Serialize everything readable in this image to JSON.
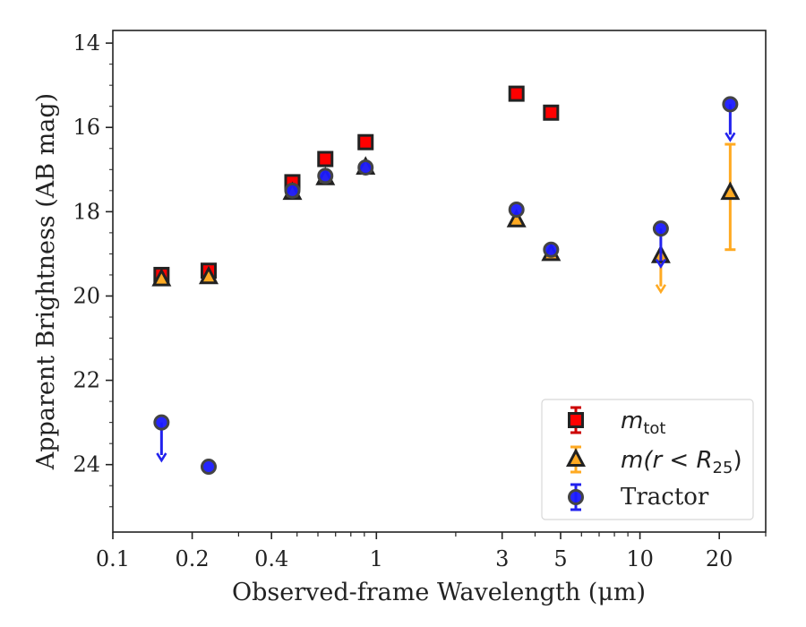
{
  "chart_data": {
    "type": "scatter",
    "xlabel": "Observed-frame Wavelength (μm)",
    "ylabel": "Apparent Brightness (AB mag)",
    "x_scale": "log",
    "y_inverted": true,
    "xlim": [
      0.1,
      30
    ],
    "ylim": [
      25.6,
      13.7
    ],
    "grid": false,
    "legend_position": "lower right",
    "x_ticks": [
      0.1,
      0.2,
      0.4,
      1,
      3,
      5,
      10,
      20
    ],
    "x_tick_labels": [
      "0.1",
      "0.2",
      "0.4",
      "1",
      "3",
      "5",
      "10",
      "20"
    ],
    "y_ticks": [
      14,
      16,
      18,
      20,
      22,
      24
    ],
    "y_tick_labels": [
      "14",
      "16",
      "18",
      "20",
      "22",
      "24"
    ],
    "legend": {
      "mtot_label": "m",
      "mtot_sub": "tot",
      "mr25_pre": "m(r < R",
      "mr25_sub": "25",
      "mr25_post": ")",
      "tractor_label": "Tractor"
    },
    "series": [
      {
        "name": "m_tot",
        "marker": "square",
        "color": "#ff0000",
        "edge": "#222222",
        "points": [
          {
            "x": 0.153,
            "y": 19.5
          },
          {
            "x": 0.231,
            "y": 19.4
          },
          {
            "x": 0.48,
            "y": 17.3
          },
          {
            "x": 0.64,
            "y": 16.75
          },
          {
            "x": 0.91,
            "y": 16.35
          },
          {
            "x": 3.4,
            "y": 15.2
          },
          {
            "x": 4.6,
            "y": 15.65
          }
        ]
      },
      {
        "name": "m(r<R25)",
        "marker": "triangle",
        "color": "#ffaa22",
        "edge": "#222222",
        "points": [
          {
            "x": 0.153,
            "y": 19.6
          },
          {
            "x": 0.231,
            "y": 19.55
          },
          {
            "x": 0.48,
            "y": 17.55
          },
          {
            "x": 0.64,
            "y": 17.2
          },
          {
            "x": 0.91,
            "y": 16.95
          },
          {
            "x": 3.4,
            "y": 18.2
          },
          {
            "x": 4.6,
            "y": 19.0
          },
          {
            "x": 12.0,
            "y": 19.05,
            "upper_limit_to": 19.9
          },
          {
            "x": 22.0,
            "y": 17.55,
            "err_low": 16.4,
            "err_high": 18.9
          }
        ]
      },
      {
        "name": "Tractor",
        "marker": "circle",
        "color": "#1a1aff",
        "edge": "#444444",
        "points": [
          {
            "x": 0.153,
            "y": 23.0,
            "upper_limit_to": 23.9
          },
          {
            "x": 0.231,
            "y": 24.05
          },
          {
            "x": 0.48,
            "y": 17.5
          },
          {
            "x": 0.64,
            "y": 17.15
          },
          {
            "x": 0.91,
            "y": 16.95
          },
          {
            "x": 3.4,
            "y": 17.95
          },
          {
            "x": 4.6,
            "y": 18.9
          },
          {
            "x": 12.0,
            "y": 18.4,
            "upper_limit_to": 19.3
          },
          {
            "x": 22.0,
            "y": 15.45,
            "upper_limit_to": 16.3
          }
        ]
      }
    ]
  }
}
